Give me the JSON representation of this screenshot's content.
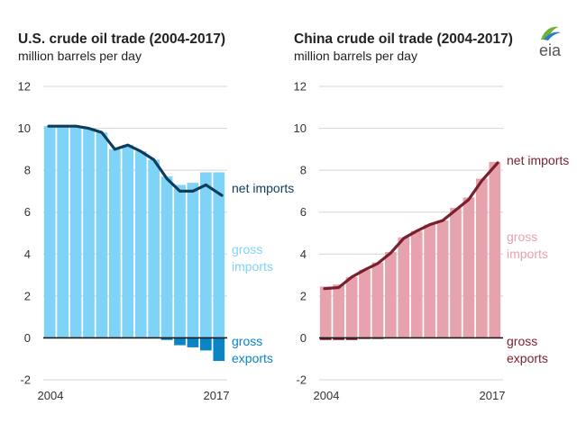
{
  "logo": {
    "text": "eia"
  },
  "chart_data": [
    {
      "type": "bar",
      "id": "us",
      "title": "U.S. crude oil trade (2004-2017)",
      "subtitle": "million barrels per day",
      "x": [
        2004,
        2005,
        2006,
        2007,
        2008,
        2009,
        2010,
        2011,
        2012,
        2013,
        2014,
        2015,
        2016,
        2017
      ],
      "x_tick_labels": [
        "2004",
        "2017"
      ],
      "ylim": [
        -2,
        12
      ],
      "y_ticks": [
        -2,
        0,
        2,
        4,
        6,
        8,
        10,
        12
      ],
      "grid": true,
      "colors": {
        "gross_imports": "#7FD3F7",
        "gross_exports": "#0B84C6",
        "net_imports": "#0E3D5C"
      },
      "series": [
        {
          "key": "gross_imports",
          "kind": "bar",
          "values": [
            10.1,
            10.1,
            10.1,
            10.0,
            9.8,
            9.0,
            9.2,
            8.9,
            8.5,
            7.7,
            7.3,
            7.4,
            7.9,
            7.9
          ]
        },
        {
          "key": "gross_exports",
          "kind": "bar",
          "values": [
            0.0,
            0.0,
            0.0,
            0.0,
            0.0,
            0.0,
            0.0,
            0.0,
            0.0,
            -0.1,
            -0.35,
            -0.45,
            -0.6,
            -1.1
          ]
        },
        {
          "key": "net_imports",
          "kind": "line",
          "values": [
            10.1,
            10.1,
            10.1,
            10.0,
            9.8,
            9.0,
            9.2,
            8.9,
            8.5,
            7.6,
            7.0,
            7.0,
            7.3,
            6.8
          ]
        }
      ],
      "annotations": {
        "net_imports": "net imports",
        "gross_imports": [
          "gross",
          "imports"
        ],
        "gross_exports": [
          "gross",
          "exports"
        ]
      }
    },
    {
      "type": "bar",
      "id": "china",
      "title": "China crude oil trade (2004-2017)",
      "subtitle": "million barrels per day",
      "x": [
        2004,
        2005,
        2006,
        2007,
        2008,
        2009,
        2010,
        2011,
        2012,
        2013,
        2014,
        2015,
        2016,
        2017
      ],
      "x_tick_labels": [
        "2004",
        "2017"
      ],
      "ylim": [
        -2,
        12
      ],
      "y_ticks": [
        -2,
        0,
        2,
        4,
        6,
        8,
        10,
        12
      ],
      "grid": true,
      "colors": {
        "gross_imports": "#E6A3AD",
        "gross_exports": "#7A1F2E",
        "net_imports": "#7A1F2E"
      },
      "series": [
        {
          "key": "gross_imports",
          "kind": "bar",
          "values": [
            2.45,
            2.55,
            2.9,
            3.25,
            3.6,
            4.1,
            4.8,
            5.1,
            5.4,
            5.6,
            6.2,
            6.7,
            7.6,
            8.4
          ]
        },
        {
          "key": "gross_exports",
          "kind": "bar",
          "values": [
            -0.1,
            -0.1,
            -0.1,
            -0.05,
            -0.05,
            0.0,
            0.0,
            0.0,
            0.0,
            0.0,
            0.0,
            0.0,
            0.0,
            0.0
          ]
        },
        {
          "key": "net_imports",
          "kind": "line",
          "values": [
            2.35,
            2.4,
            2.9,
            3.25,
            3.55,
            4.05,
            4.75,
            5.1,
            5.4,
            5.6,
            6.1,
            6.6,
            7.5,
            8.35
          ]
        }
      ],
      "annotations": {
        "net_imports": "net imports",
        "gross_imports": [
          "gross",
          "imports"
        ],
        "gross_exports": [
          "gross",
          "exports"
        ]
      }
    }
  ]
}
